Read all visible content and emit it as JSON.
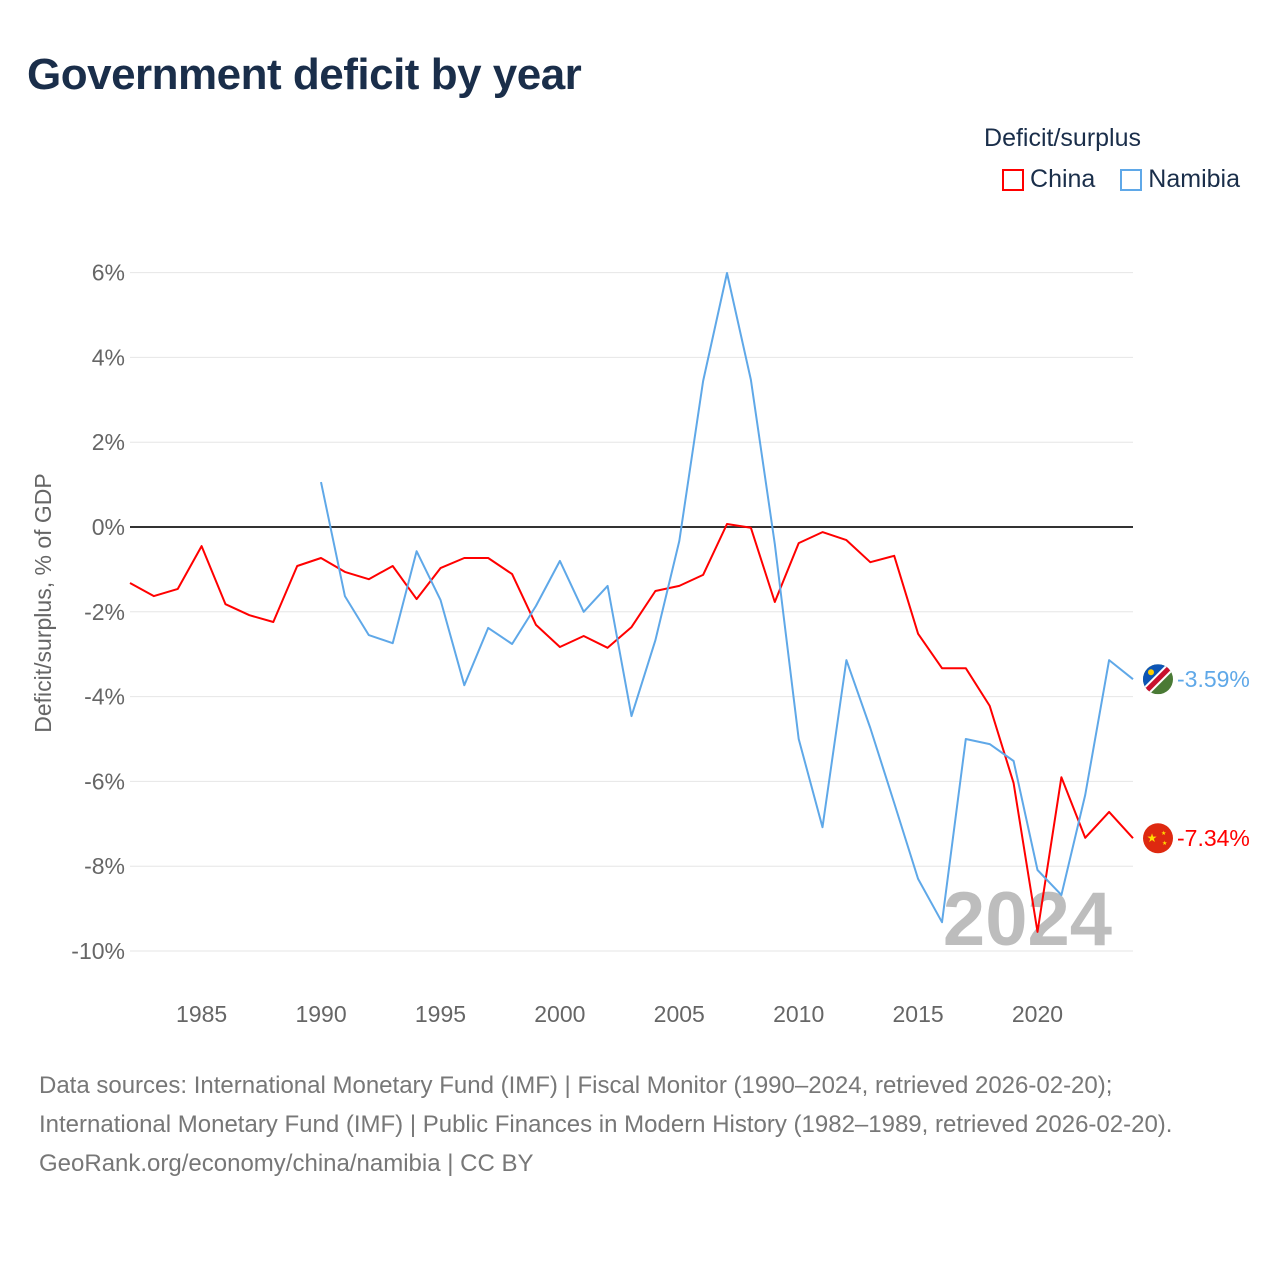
{
  "chart_data": {
    "type": "line",
    "title": "Government deficit by year",
    "ylabel": "Deficit/surplus, % of GDP",
    "xlabel": "",
    "xlim": [
      1982,
      2024
    ],
    "ylim": [
      -11,
      6.5
    ],
    "yticks": [
      6,
      4,
      2,
      0,
      -2,
      -4,
      -6,
      -8,
      -10
    ],
    "ytick_labels": [
      "6%",
      "4%",
      "2%",
      "0%",
      "-2%",
      "-4%",
      "-6%",
      "-8%",
      "-10%"
    ],
    "xticks": [
      1985,
      1990,
      1995,
      2000,
      2005,
      2010,
      2015,
      2020
    ],
    "xtick_labels": [
      "1985",
      "1990",
      "1995",
      "2000",
      "2005",
      "2010",
      "2015",
      "2020"
    ],
    "grid": true,
    "legend_title": "Deficit/surplus",
    "legend_position": "top-right",
    "year_watermark": "2024",
    "series": [
      {
        "name": "China",
        "color": "#ff0000",
        "end_label": "-7.34%",
        "x": [
          1982,
          1983,
          1984,
          1985,
          1986,
          1987,
          1988,
          1989,
          1990,
          1991,
          1992,
          1993,
          1994,
          1995,
          1996,
          1997,
          1998,
          1999,
          2000,
          2001,
          2002,
          2003,
          2004,
          2005,
          2006,
          2007,
          2008,
          2009,
          2010,
          2011,
          2012,
          2013,
          2014,
          2015,
          2016,
          2017,
          2018,
          2019,
          2020,
          2021,
          2022,
          2023,
          2024
        ],
        "values": [
          -1.32,
          -1.63,
          -1.46,
          -0.45,
          -1.82,
          -2.08,
          -2.24,
          -0.92,
          -0.73,
          -1.06,
          -1.23,
          -0.92,
          -1.7,
          -0.97,
          -0.73,
          -0.73,
          -1.11,
          -2.31,
          -2.83,
          -2.57,
          -2.85,
          -2.36,
          -1.51,
          -1.39,
          -1.13,
          0.07,
          -0.02,
          -1.77,
          -0.38,
          -0.12,
          -0.31,
          -0.83,
          -0.68,
          -2.52,
          -3.33,
          -3.33,
          -4.22,
          -6.04,
          -9.55,
          -5.9,
          -7.33,
          -6.72,
          -7.34
        ]
      },
      {
        "name": "Namibia",
        "color": "#5fa8e8",
        "end_label": "-3.59%",
        "x": [
          1990,
          1991,
          1992,
          1993,
          1994,
          1995,
          1996,
          1997,
          1998,
          1999,
          2000,
          2001,
          2002,
          2003,
          2004,
          2005,
          2006,
          2007,
          2008,
          2009,
          2010,
          2011,
          2012,
          2013,
          2014,
          2015,
          2016,
          2017,
          2018,
          2019,
          2020,
          2021,
          2022,
          2023,
          2024
        ],
        "values": [
          1.06,
          -1.63,
          -2.55,
          -2.74,
          -0.57,
          -1.72,
          -3.73,
          -2.38,
          -2.76,
          -1.86,
          -0.8,
          -2.0,
          -1.39,
          -4.46,
          -2.67,
          -0.33,
          3.44,
          5.99,
          3.47,
          -0.4,
          -5.0,
          -7.08,
          -3.14,
          -4.74,
          -6.51,
          -8.3,
          -9.32,
          -5.0,
          -5.12,
          -5.52,
          -8.09,
          -8.68,
          -6.32,
          -3.14,
          -3.59
        ]
      }
    ]
  },
  "footer": {
    "sources": "Data sources: International Monetary Fund (IMF) | Fiscal Monitor (1990–2024, retrieved 2026-02-20); International Monetary Fund (IMF) | Public Finances in Modern History (1982–1989, retrieved 2026-02-20).",
    "credit": "GeoRank.org/economy/china/namibia | CC BY"
  }
}
